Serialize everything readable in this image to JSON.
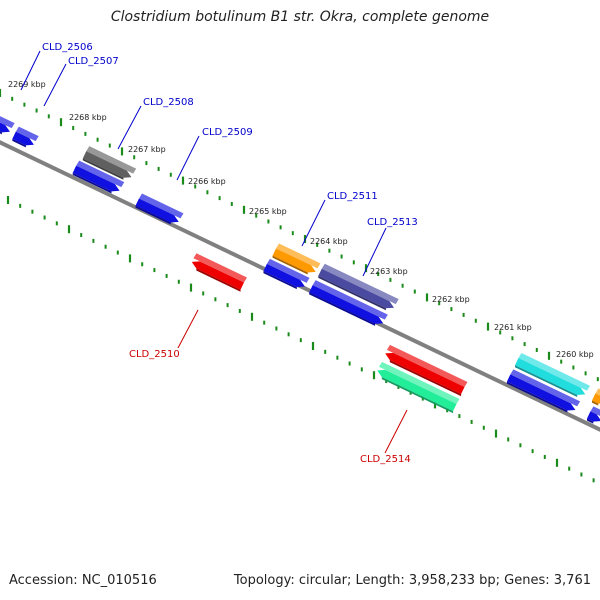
{
  "title": "Clostridium botulinum B1 str. Okra, complete genome",
  "footer": {
    "accession": "Accession: NC_010516",
    "summary": "Topology: circular; Length: 3,958,233 bp; Genes: 3,761"
  },
  "ticks": [
    "2269 kbp",
    "2268 kbp",
    "2267 kbp",
    "2266 kbp",
    "2265 kbp",
    "2264 kbp",
    "2263 kbp",
    "2262 kbp",
    "2261 kbp",
    "2260 kbp"
  ],
  "gene_labels": [
    "CLD_2506",
    "CLD_2507",
    "CLD_2508",
    "CLD_2509",
    "CLD_2511",
    "CLD_2513",
    "CLD_2510",
    "CLD_2514"
  ],
  "colors": {
    "backbone": "#808080",
    "tick": "#1a8a1a",
    "label_forward": "#0000cc",
    "label_reverse": "#cc0000",
    "blue": "#1010e0",
    "gray": "#606060",
    "orange": "#ff9900",
    "slate": "#4a4aa0",
    "red": "#ee0000",
    "teal": "#22ee99",
    "cyan": "#22dddd"
  }
}
